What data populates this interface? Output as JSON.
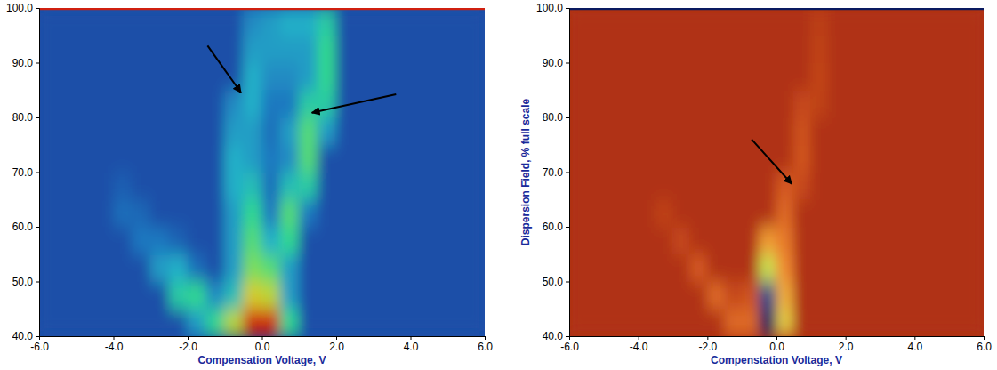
{
  "chart_data": [
    {
      "type": "heatmap",
      "x_label": "Compensation Voltage, V",
      "xlim": [
        -6,
        6
      ],
      "ylim": [
        40,
        100
      ],
      "xticks": [
        {
          "value": -6,
          "label": "-6.0"
        },
        {
          "value": -4,
          "label": "-4.0"
        },
        {
          "value": -2,
          "label": "-2.0"
        },
        {
          "value": 0,
          "label": "0.0"
        },
        {
          "value": 2,
          "label": "2.0"
        },
        {
          "value": 4,
          "label": "4.0"
        },
        {
          "value": 6,
          "label": "6.0"
        }
      ],
      "yticks": [
        {
          "value": 40,
          "label": "40.0"
        },
        {
          "value": 50,
          "label": "50.0"
        },
        {
          "value": 60,
          "label": "60.0"
        },
        {
          "value": 70,
          "label": "70.0"
        },
        {
          "value": 80,
          "label": "80.0"
        },
        {
          "value": 90,
          "label": "90.0"
        },
        {
          "value": 100,
          "label": "100.0"
        }
      ],
      "x": [
        -5.75,
        -5.25,
        -4.75,
        -4.25,
        -3.75,
        -3.25,
        -2.75,
        -2.25,
        -1.75,
        -1.25,
        -0.75,
        -0.25,
        0.25,
        0.75,
        1.25,
        1.75,
        2.25,
        2.75,
        3.25,
        3.75,
        4.25,
        4.75,
        5.25,
        5.75
      ],
      "y": [
        42.5,
        47.5,
        52.5,
        57.5,
        62.5,
        67.5,
        72.5,
        77.5,
        82.5,
        87.5,
        92.5,
        97.5
      ],
      "z": [
        [
          0,
          0,
          0,
          0,
          0,
          0,
          0,
          0,
          0.3,
          0.5,
          0.7,
          1.0,
          1.0,
          0.5,
          0,
          0,
          0,
          0,
          0,
          0,
          0,
          0,
          0,
          0
        ],
        [
          0,
          0,
          0,
          0,
          0,
          0,
          0,
          0.45,
          0.5,
          0.25,
          0.4,
          0.75,
          0.7,
          0.3,
          0,
          0,
          0,
          0,
          0,
          0,
          0,
          0,
          0,
          0
        ],
        [
          0,
          0,
          0,
          0,
          0,
          0,
          0.3,
          0.35,
          0.15,
          0,
          0.3,
          0.6,
          0.55,
          0.3,
          0,
          0,
          0,
          0,
          0,
          0,
          0,
          0,
          0,
          0
        ],
        [
          0,
          0,
          0,
          0,
          0,
          0.2,
          0.2,
          0.1,
          0,
          0,
          0.3,
          0.55,
          0.35,
          0.5,
          0,
          0,
          0,
          0,
          0,
          0,
          0,
          0,
          0,
          0
        ],
        [
          0,
          0,
          0,
          0,
          0.15,
          0.12,
          0,
          0,
          0,
          0,
          0.3,
          0.5,
          0.2,
          0.55,
          0.2,
          0,
          0,
          0,
          0,
          0,
          0,
          0,
          0,
          0
        ],
        [
          0,
          0,
          0,
          0,
          0.08,
          0,
          0,
          0,
          0,
          0,
          0.35,
          0.4,
          0.15,
          0.4,
          0.45,
          0,
          0,
          0,
          0,
          0,
          0,
          0,
          0,
          0
        ],
        [
          0,
          0,
          0,
          0,
          0,
          0,
          0,
          0,
          0,
          0,
          0.35,
          0.3,
          0.2,
          0.25,
          0.55,
          0,
          0,
          0,
          0,
          0,
          0,
          0,
          0,
          0
        ],
        [
          0,
          0,
          0,
          0,
          0,
          0,
          0,
          0,
          0,
          0,
          0.3,
          0.3,
          0.15,
          0.3,
          0.55,
          0.3,
          0,
          0,
          0,
          0,
          0,
          0,
          0,
          0
        ],
        [
          0,
          0,
          0,
          0,
          0,
          0,
          0,
          0,
          0,
          0,
          0.25,
          0.35,
          0.2,
          0.2,
          0.45,
          0.45,
          0,
          0,
          0,
          0,
          0,
          0,
          0,
          0
        ],
        [
          0,
          0,
          0,
          0,
          0,
          0,
          0,
          0,
          0,
          0,
          0,
          0.35,
          0.25,
          0.25,
          0.3,
          0.5,
          0,
          0,
          0,
          0,
          0,
          0,
          0,
          0
        ],
        [
          0,
          0,
          0,
          0,
          0,
          0,
          0,
          0,
          0,
          0,
          0,
          0.3,
          0.3,
          0.3,
          0.3,
          0.5,
          0,
          0,
          0,
          0,
          0,
          0,
          0,
          0
        ],
        [
          0,
          0,
          0,
          0,
          0,
          0,
          0,
          0,
          0,
          0,
          0,
          0.25,
          0.3,
          0.35,
          0.35,
          0.45,
          0,
          0,
          0,
          0,
          0,
          0,
          0,
          0
        ]
      ]
    },
    {
      "type": "heatmap",
      "x_label": "Compenstation Voltage, V",
      "y_label": "Dispersion Field, % full scale",
      "xlim": [
        -6,
        6
      ],
      "ylim": [
        40,
        100
      ],
      "xticks": [
        {
          "value": -6,
          "label": "-6.0"
        },
        {
          "value": -4,
          "label": "-4.0"
        },
        {
          "value": -2,
          "label": "-2.0"
        },
        {
          "value": 0,
          "label": "0.0"
        },
        {
          "value": 2,
          "label": "2.0"
        },
        {
          "value": 4,
          "label": "4.0"
        },
        {
          "value": 6,
          "label": "6.0"
        }
      ],
      "yticks": [
        {
          "value": 40,
          "label": "40.0"
        },
        {
          "value": 50,
          "label": "50.0"
        },
        {
          "value": 60,
          "label": "60.0"
        },
        {
          "value": 70,
          "label": "70.0"
        },
        {
          "value": 80,
          "label": "80.0"
        },
        {
          "value": 90,
          "label": "90.0"
        },
        {
          "value": 100,
          "label": "100.0"
        }
      ],
      "x": [
        -5.75,
        -5.25,
        -4.75,
        -4.25,
        -3.75,
        -3.25,
        -2.75,
        -2.25,
        -1.75,
        -1.25,
        -0.75,
        -0.25,
        0.25,
        0.75,
        1.25,
        1.75,
        2.25,
        2.75,
        3.25,
        3.75,
        4.25,
        4.75,
        5.25,
        5.75
      ],
      "y": [
        42.5,
        47.5,
        52.5,
        57.5,
        62.5,
        67.5,
        72.5,
        77.5,
        82.5,
        87.5,
        92.5,
        97.5
      ],
      "z": [
        [
          0,
          0,
          0,
          0,
          0,
          0,
          0,
          0,
          0,
          0.3,
          0.3,
          1.0,
          0.6,
          0,
          0,
          0,
          0,
          0,
          0,
          0,
          0,
          0,
          0,
          0
        ],
        [
          0,
          0,
          0,
          0,
          0,
          0,
          0,
          0,
          0.3,
          0.15,
          0.2,
          0.95,
          0.5,
          0,
          0,
          0,
          0,
          0,
          0,
          0,
          0,
          0,
          0,
          0
        ],
        [
          0,
          0,
          0,
          0,
          0,
          0,
          0,
          0.25,
          0,
          0,
          0,
          0.7,
          0.4,
          0,
          0,
          0,
          0,
          0,
          0,
          0,
          0,
          0,
          0,
          0
        ],
        [
          0,
          0,
          0,
          0,
          0,
          0,
          0.15,
          0,
          0,
          0,
          0,
          0.45,
          0.35,
          0,
          0,
          0,
          0,
          0,
          0,
          0,
          0,
          0,
          0,
          0
        ],
        [
          0,
          0,
          0,
          0,
          0,
          0.1,
          0,
          0,
          0,
          0,
          0,
          0,
          0.3,
          0,
          0,
          0,
          0,
          0,
          0,
          0,
          0,
          0,
          0,
          0
        ],
        [
          0,
          0,
          0,
          0,
          0,
          0,
          0,
          0,
          0,
          0,
          0,
          0,
          0.25,
          0.15,
          0,
          0,
          0,
          0,
          0,
          0,
          0,
          0,
          0,
          0
        ],
        [
          0,
          0,
          0,
          0,
          0,
          0,
          0,
          0,
          0,
          0,
          0,
          0,
          0,
          0.22,
          0,
          0,
          0,
          0,
          0,
          0,
          0,
          0,
          0,
          0
        ],
        [
          0,
          0,
          0,
          0,
          0,
          0,
          0,
          0,
          0,
          0,
          0,
          0,
          0,
          0.2,
          0,
          0,
          0,
          0,
          0,
          0,
          0,
          0,
          0,
          0
        ],
        [
          0,
          0,
          0,
          0,
          0,
          0,
          0,
          0,
          0,
          0,
          0,
          0,
          0,
          0.15,
          0.1,
          0,
          0,
          0,
          0,
          0,
          0,
          0,
          0,
          0
        ],
        [
          0,
          0,
          0,
          0,
          0,
          0,
          0,
          0,
          0,
          0,
          0,
          0,
          0,
          0,
          0.12,
          0,
          0,
          0,
          0,
          0,
          0,
          0,
          0,
          0
        ],
        [
          0,
          0,
          0,
          0,
          0,
          0,
          0,
          0,
          0,
          0,
          0,
          0,
          0,
          0,
          0.1,
          0,
          0,
          0,
          0,
          0,
          0,
          0,
          0,
          0
        ],
        [
          0,
          0,
          0,
          0,
          0,
          0,
          0,
          0,
          0,
          0,
          0,
          0,
          0,
          0,
          0.08,
          0,
          0,
          0,
          0,
          0,
          0,
          0,
          0,
          0
        ]
      ]
    }
  ]
}
